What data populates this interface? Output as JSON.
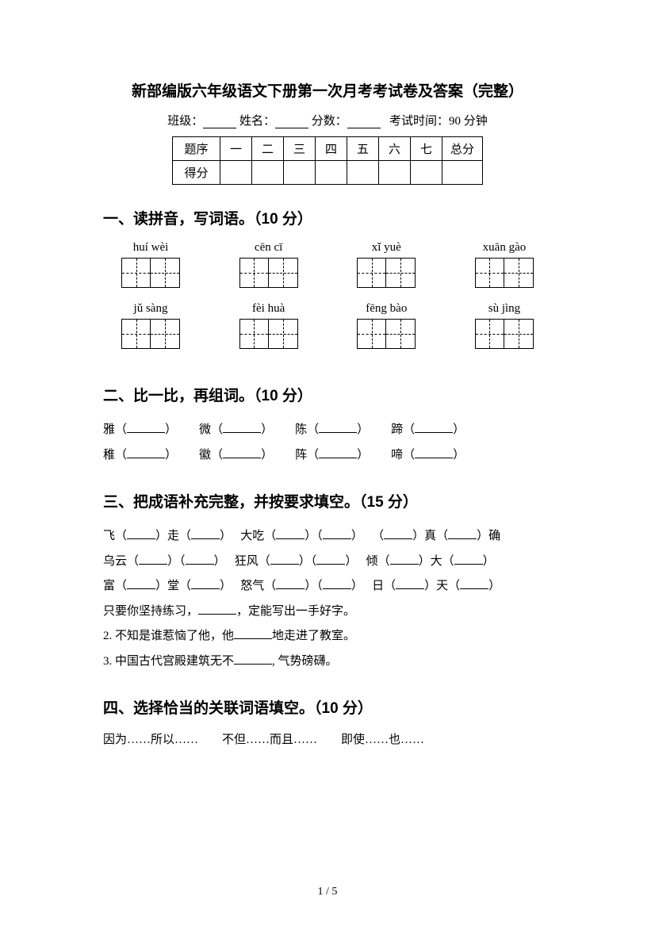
{
  "title": "新部编版六年级语文下册第一次月考考试卷及答案（完整）",
  "info": {
    "class_label": "班级：",
    "name_label": "姓名：",
    "score_label": "分数：",
    "time_label": "考试时间：90 分钟"
  },
  "score_table": {
    "headers": [
      "题序",
      "一",
      "二",
      "三",
      "四",
      "五",
      "六",
      "七",
      "总分"
    ],
    "row2_label": "得分"
  },
  "section1": {
    "heading": "一、读拼音，写词语。（10 分）",
    "row1": [
      "huí wèi",
      "cēn cī",
      "xǐ yuè",
      "xuān gào"
    ],
    "row2": [
      "jǔ sàng",
      "fèi huà",
      "fēng bào",
      "sù jìng"
    ],
    "cells_per_box": 2
  },
  "section2": {
    "heading": "二、比一比，再组词。（10 分）",
    "pairs": [
      [
        "雅",
        "微",
        "陈",
        "蹄"
      ],
      [
        "稚",
        "徽",
        "阵",
        "啼"
      ]
    ]
  },
  "section3": {
    "heading": "三、把成语补充完整，并按要求填空。（15 分）",
    "idioms_line1": [
      {
        "p": [
          "飞（",
          "）走（",
          "）"
        ]
      },
      {
        "p": [
          "大吃（",
          "）（",
          "）"
        ]
      },
      {
        "p": [
          "（",
          "）真（",
          "）确"
        ]
      }
    ],
    "idioms_line2": [
      {
        "p": [
          "乌云（",
          "）（",
          "）"
        ]
      },
      {
        "p": [
          "狂风（",
          "）（",
          "）"
        ]
      },
      {
        "p": [
          "倾（",
          "）大（",
          "）"
        ]
      }
    ],
    "idioms_line3": [
      {
        "p": [
          "富（",
          "）堂（",
          "）"
        ]
      },
      {
        "p": [
          "怒气（",
          "）（",
          "）"
        ]
      },
      {
        "p": [
          "日（",
          "）天（",
          "）"
        ]
      }
    ],
    "sent1_a": "只要你坚持练习，",
    "sent1_b": "，定能写出一手好字。",
    "sent2_a": "2. 不知是谁惹恼了他，他",
    "sent2_b": "地走进了教室。",
    "sent3_a": "3. 中国古代宫殿建筑无不",
    "sent3_b": ", 气势磅礴。"
  },
  "section4": {
    "heading": "四、选择恰当的关联词语填空。（10 分）",
    "options": "因为……所以……　　不但……而且……　　即使……也……"
  },
  "footer": "1 / 5"
}
